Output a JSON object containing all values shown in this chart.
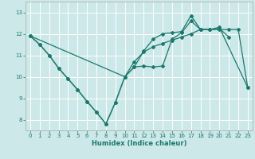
{
  "xlabel": "Humidex (Indice chaleur)",
  "xlim": [
    -0.5,
    23.5
  ],
  "ylim": [
    7.5,
    13.5
  ],
  "xticks": [
    0,
    1,
    2,
    3,
    4,
    5,
    6,
    7,
    8,
    9,
    10,
    11,
    12,
    13,
    14,
    15,
    16,
    17,
    18,
    19,
    20,
    21,
    22,
    23
  ],
  "yticks": [
    8,
    9,
    10,
    11,
    12,
    13
  ],
  "background_color": "#cce8e8",
  "line_color": "#1a7a6e",
  "grid_color": "#ffffff",
  "series_vshape": [
    11.9,
    11.5,
    11.0,
    10.4,
    9.9,
    9.4,
    8.85,
    8.35,
    7.8,
    8.8,
    10.0,
    10.45,
    10.5,
    10.45,
    10.5,
    11.75,
    12.05,
    12.6,
    12.2,
    12.2,
    12.25,
    11.85,
    null,
    null
  ],
  "series_diagonal": [
    11.9,
    null,
    null,
    null,
    null,
    null,
    null,
    null,
    null,
    null,
    10.0,
    10.7,
    11.15,
    11.4,
    11.55,
    11.7,
    11.85,
    12.0,
    12.2,
    12.2,
    12.2,
    12.2,
    12.2,
    9.5
  ],
  "series_upper": [
    11.9,
    11.5,
    11.0,
    10.4,
    9.9,
    9.4,
    8.85,
    8.35,
    7.8,
    8.8,
    10.0,
    10.45,
    11.2,
    11.75,
    12.0,
    12.05,
    12.1,
    12.85,
    12.2,
    12.2,
    12.3,
    null,
    null,
    9.5
  ]
}
